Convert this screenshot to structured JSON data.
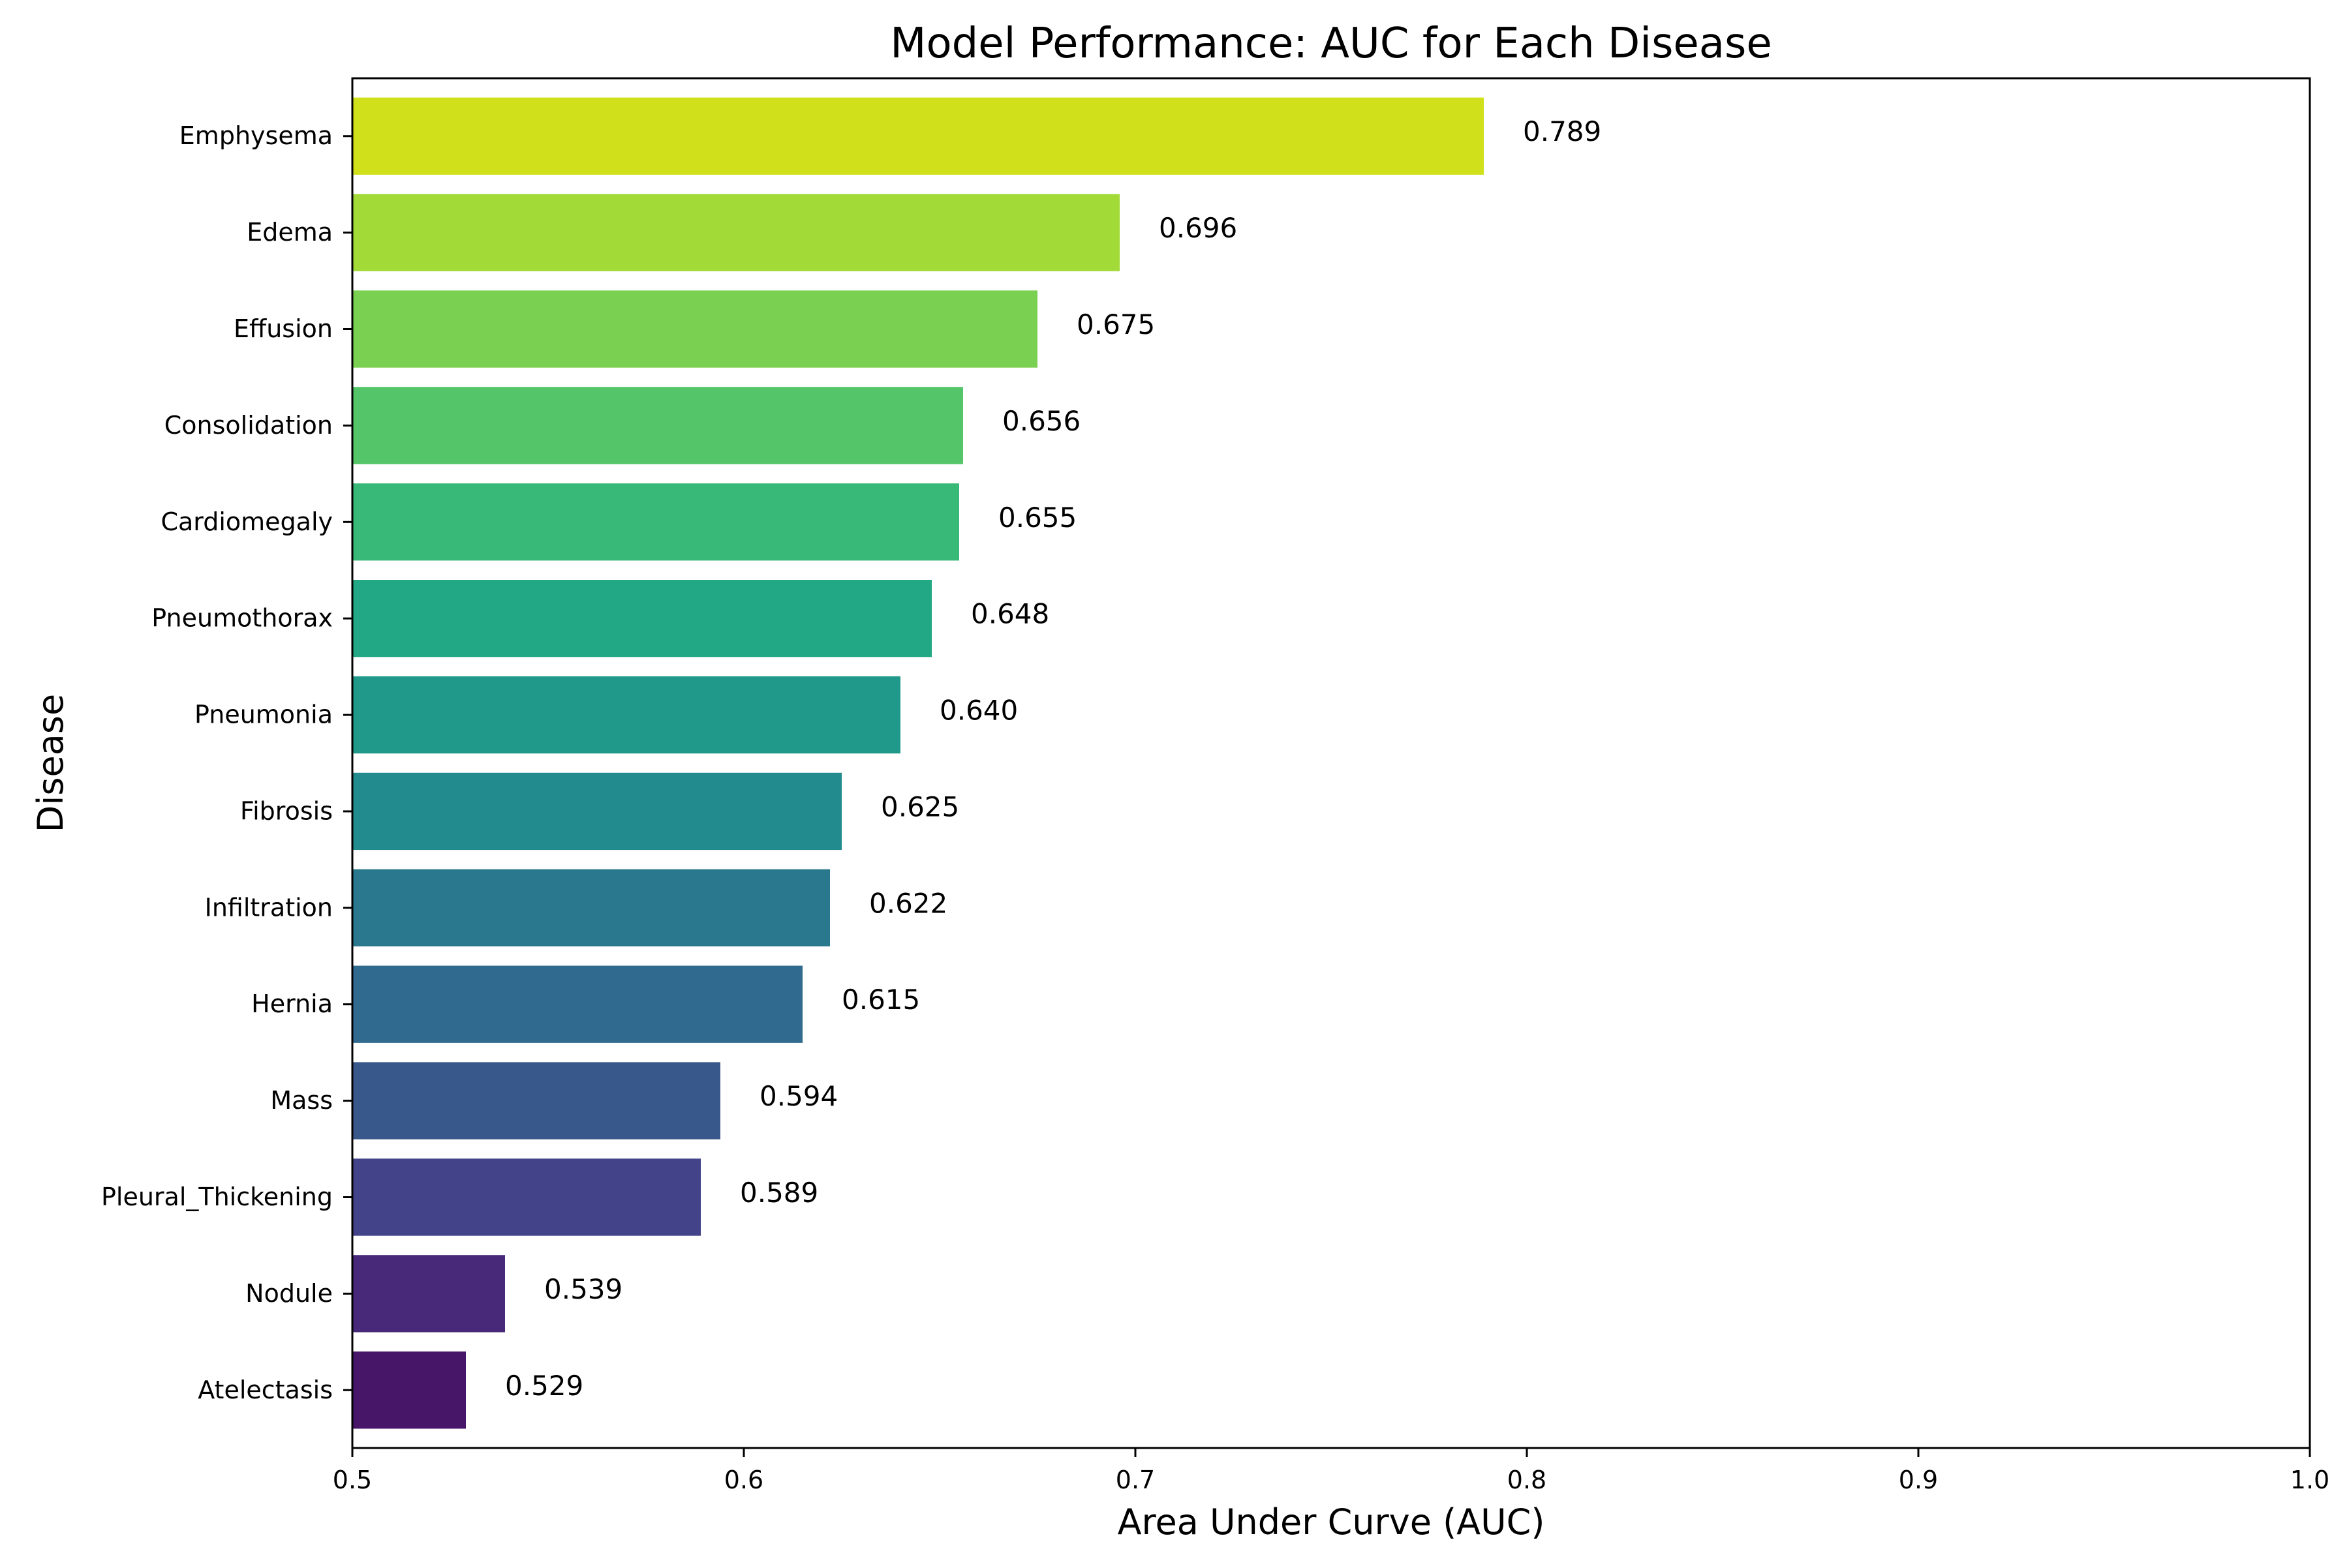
{
  "chart_data": {
    "type": "bar",
    "orientation": "horizontal",
    "title": "Model Performance: AUC for Each Disease",
    "xlabel": "Area Under Curve (AUC)",
    "ylabel": "Disease",
    "xlim": [
      0.5,
      1.0
    ],
    "xticks": [
      "0.5",
      "0.6",
      "0.7",
      "0.8",
      "0.9",
      "1.0"
    ],
    "grid": false,
    "legend": "none",
    "categories": [
      "Emphysema",
      "Edema",
      "Effusion",
      "Consolidation",
      "Cardiomegaly",
      "Pneumothorax",
      "Pneumonia",
      "Fibrosis",
      "Infiltration",
      "Hernia",
      "Mass",
      "Pleural_Thickening",
      "Nodule",
      "Atelectasis"
    ],
    "values": [
      0.789,
      0.696,
      0.675,
      0.656,
      0.655,
      0.648,
      0.64,
      0.625,
      0.622,
      0.615,
      0.594,
      0.589,
      0.539,
      0.529
    ],
    "value_labels": [
      "0.789",
      "0.696",
      "0.675",
      "0.656",
      "0.655",
      "0.648",
      "0.640",
      "0.625",
      "0.622",
      "0.615",
      "0.594",
      "0.589",
      "0.539",
      "0.529"
    ],
    "colors": [
      "#d0e11c",
      "#a2da37",
      "#7ad151",
      "#54c568",
      "#38b977",
      "#22a884",
      "#20998a",
      "#228b8d",
      "#2a788e",
      "#306a8e",
      "#38588c",
      "#424388",
      "#482878",
      "#481668"
    ]
  }
}
